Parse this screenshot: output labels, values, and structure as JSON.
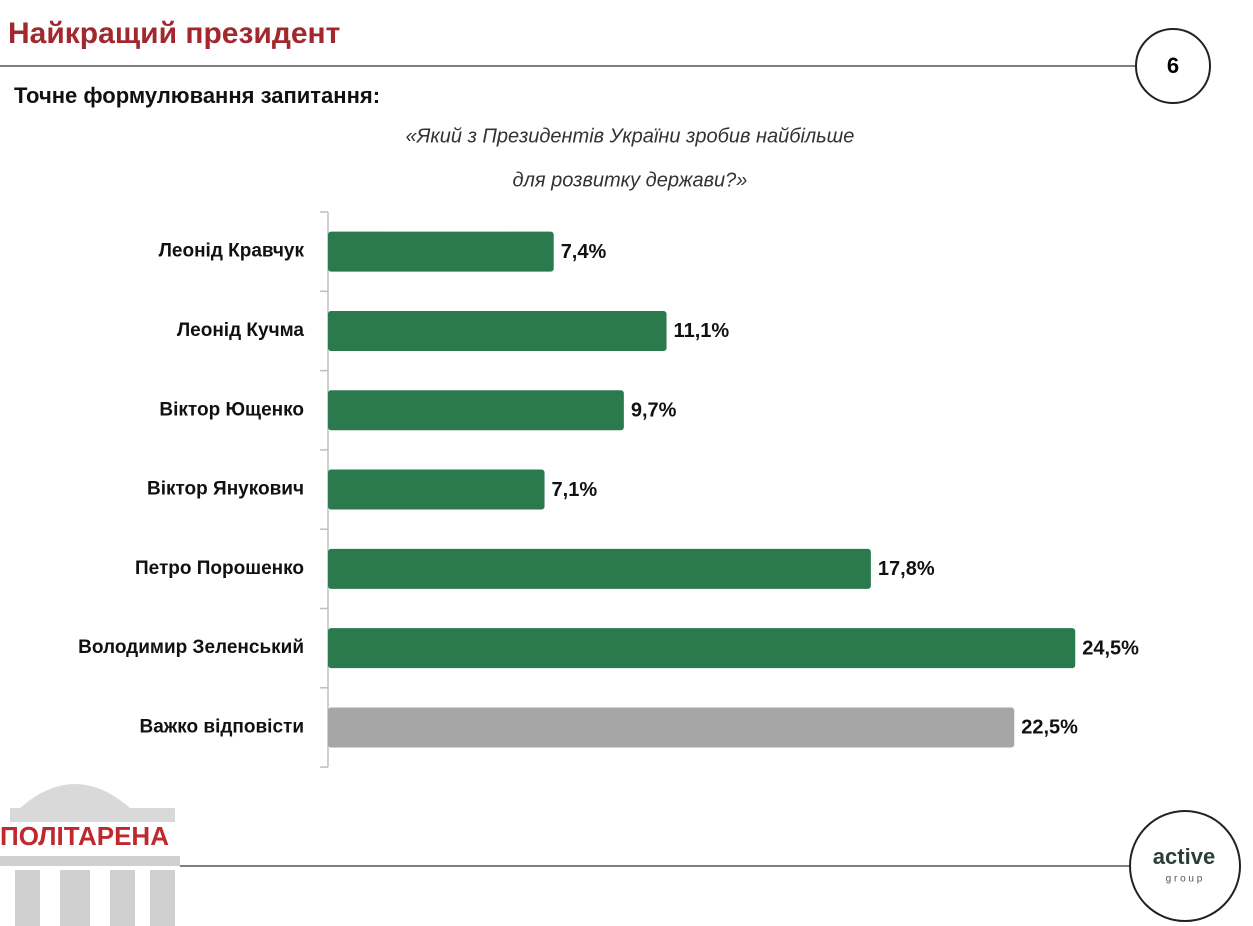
{
  "header": {
    "title": "Найкращий президент",
    "page_number": "6",
    "subtitle": "Точне формулювання запитання:",
    "question": [
      "«Який з Президентів України зробив найбільше",
      "для розвитку держави?»"
    ]
  },
  "chart_data": {
    "type": "hbar",
    "categories": [
      "Леонід Кравчук",
      "Леонід Кучма",
      "Віктор Ющенко",
      "Віктор Янукович",
      "Петро Порошенко",
      "Володимир Зеленський",
      "Важко відповісти"
    ],
    "values": [
      7.4,
      11.1,
      9.7,
      7.1,
      17.8,
      24.5,
      22.5
    ],
    "value_labels": [
      "7,4%",
      "11,1%",
      "9,7%",
      "7,1%",
      "17,8%",
      "24,5%",
      "22,5%"
    ],
    "colors": [
      "#2a7a4e",
      "#2a7a4e",
      "#2a7a4e",
      "#2a7a4e",
      "#2a7a4e",
      "#2a7a4e",
      "#a6a6a6"
    ]
  },
  "footer": {
    "logo_left": "ПОЛІТАРЕНА",
    "logo_right": "active",
    "logo_right_sub": "g r o u p"
  }
}
